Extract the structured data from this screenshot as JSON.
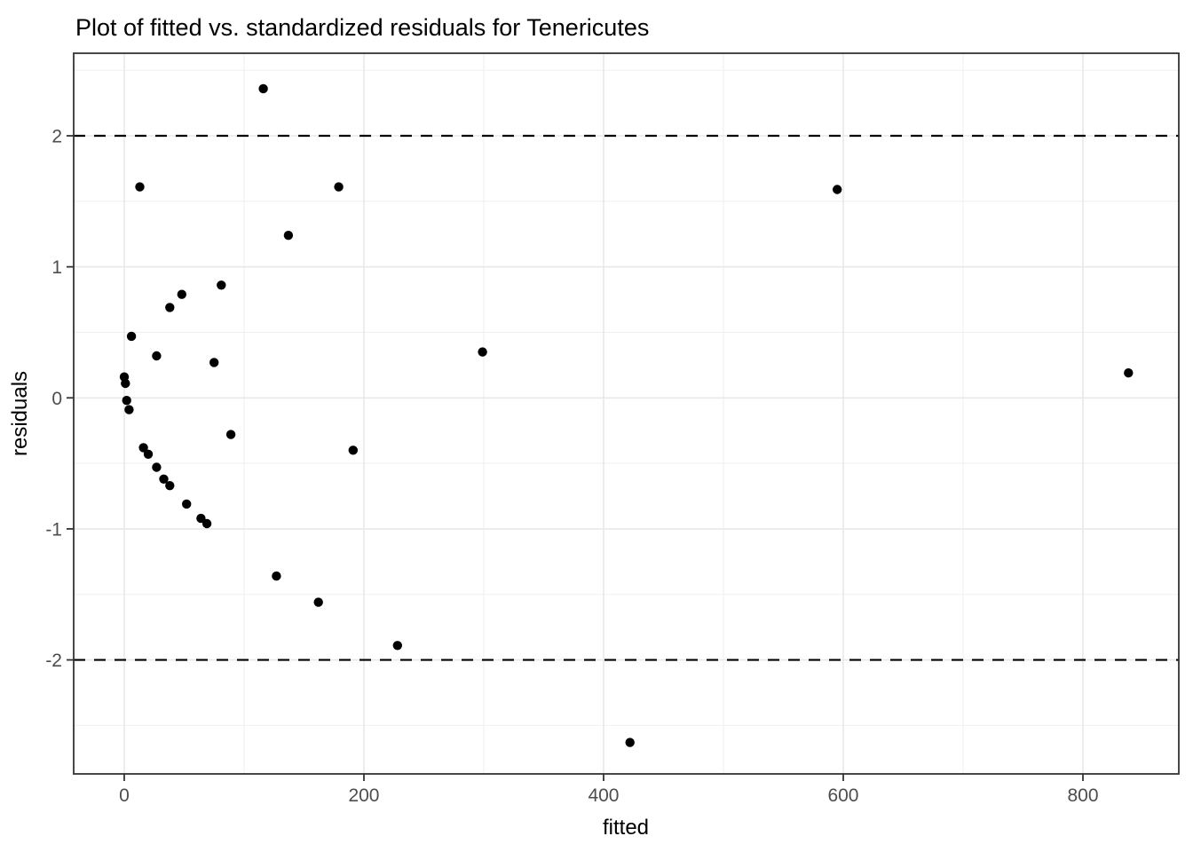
{
  "chart_data": {
    "type": "scatter",
    "title": "Plot of fitted vs. standardized residuals for Tenericutes",
    "xlabel": "fitted",
    "ylabel": "residuals",
    "xlim": [
      -42.2,
      880
    ],
    "ylim": [
      -2.87,
      2.63
    ],
    "x_ticks": [
      0,
      200,
      400,
      600,
      800
    ],
    "x_minor": [
      100,
      300,
      500,
      700
    ],
    "y_ticks": [
      -2,
      -1,
      0,
      1,
      2
    ],
    "y_minor": [
      -2.5,
      -1.5,
      -0.5,
      0.5,
      1.5,
      2.5
    ],
    "reference_lines": {
      "y_values": [
        2,
        -2
      ],
      "style": "dashed",
      "color": "#000000"
    },
    "grid": true,
    "legend": "none",
    "points": [
      {
        "fitted": 116,
        "residual": 2.36
      },
      {
        "fitted": 13,
        "residual": 1.61
      },
      {
        "fitted": 179,
        "residual": 1.61
      },
      {
        "fitted": 595,
        "residual": 1.59
      },
      {
        "fitted": 137,
        "residual": 1.24
      },
      {
        "fitted": 81,
        "residual": 0.86
      },
      {
        "fitted": 48,
        "residual": 0.79
      },
      {
        "fitted": 38,
        "residual": 0.69
      },
      {
        "fitted": 6,
        "residual": 0.47
      },
      {
        "fitted": 299,
        "residual": 0.35
      },
      {
        "fitted": 27,
        "residual": 0.32
      },
      {
        "fitted": 75,
        "residual": 0.27
      },
      {
        "fitted": 838,
        "residual": 0.19
      },
      {
        "fitted": 0,
        "residual": 0.16
      },
      {
        "fitted": 1,
        "residual": 0.11
      },
      {
        "fitted": 2,
        "residual": -0.02
      },
      {
        "fitted": 4,
        "residual": -0.09
      },
      {
        "fitted": 89,
        "residual": -0.28
      },
      {
        "fitted": 16,
        "residual": -0.38
      },
      {
        "fitted": 191,
        "residual": -0.4
      },
      {
        "fitted": 20,
        "residual": -0.43
      },
      {
        "fitted": 27,
        "residual": -0.53
      },
      {
        "fitted": 33,
        "residual": -0.62
      },
      {
        "fitted": 38,
        "residual": -0.67
      },
      {
        "fitted": 52,
        "residual": -0.81
      },
      {
        "fitted": 64,
        "residual": -0.92
      },
      {
        "fitted": 69,
        "residual": -0.96
      },
      {
        "fitted": 127,
        "residual": -1.36
      },
      {
        "fitted": 162,
        "residual": -1.56
      },
      {
        "fitted": 228,
        "residual": -1.89
      },
      {
        "fitted": 422,
        "residual": -2.63
      }
    ],
    "colors": {
      "point": "#000000",
      "panel_border": "#333333",
      "grid_major": "#e8e8e8",
      "grid_minor": "#f0f0f0",
      "tick": "#333333",
      "tick_label": "#4d4d4d",
      "reference_line": "#000000",
      "background": "#ffffff"
    }
  }
}
